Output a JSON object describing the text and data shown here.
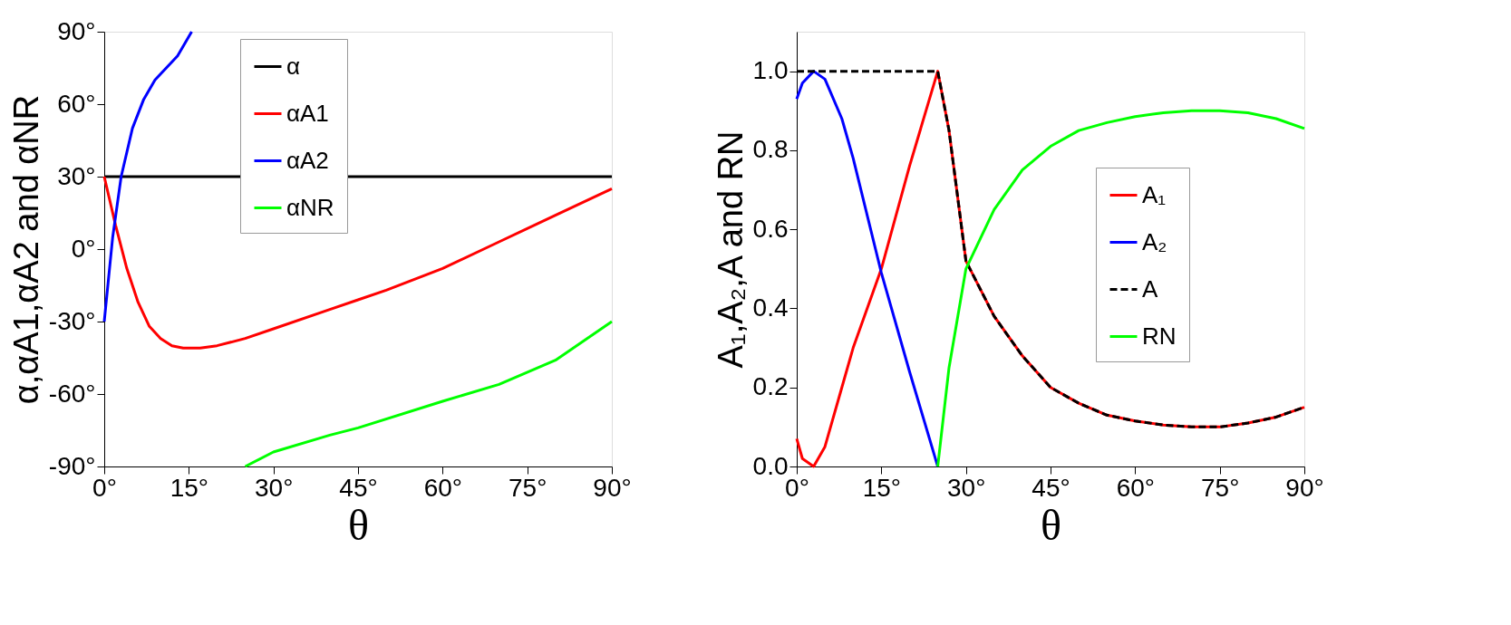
{
  "chart_data": [
    {
      "type": "line",
      "xlabel": "θ",
      "ylabel": "α,αA1,αA2 and αNR",
      "legend": "top",
      "grid": false,
      "line_style": "solid",
      "xlim": [
        0,
        90
      ],
      "ylim": [
        -90,
        90
      ],
      "xticks": [
        {
          "value": 0,
          "label": "0°"
        },
        {
          "value": 15,
          "label": "15°"
        },
        {
          "value": 30,
          "label": "30°"
        },
        {
          "value": 45,
          "label": "45°"
        },
        {
          "value": 60,
          "label": "60°"
        },
        {
          "value": 75,
          "label": "75°"
        },
        {
          "value": 90,
          "label": "90°"
        }
      ],
      "yticks": [
        {
          "value": -90,
          "label": "-90°"
        },
        {
          "value": -60,
          "label": "-60°"
        },
        {
          "value": -30,
          "label": "-30°"
        },
        {
          "value": 0,
          "label": "0°"
        },
        {
          "value": 30,
          "label": "30°"
        },
        {
          "value": 60,
          "label": "60°"
        },
        {
          "value": 90,
          "label": "90°"
        }
      ],
      "series": [
        {
          "name": "α",
          "color": "#000000",
          "x": [
            0,
            90
          ],
          "values": [
            30,
            30
          ]
        },
        {
          "name": "αA1",
          "color": "#ff0000",
          "x": [
            0,
            2,
            4,
            6,
            8,
            10,
            12,
            14,
            17,
            20,
            25,
            30,
            40,
            45,
            50,
            60,
            70,
            80,
            90
          ],
          "values": [
            30,
            10,
            -8,
            -22,
            -32,
            -37,
            -40,
            -41,
            -41,
            -40,
            -37,
            -33,
            -25,
            -21,
            -17,
            -8,
            3,
            14,
            25
          ]
        },
        {
          "name": "αA2",
          "color": "#0000ff",
          "x": [
            0,
            1.5,
            3,
            5,
            7,
            9,
            11,
            13,
            15.5
          ],
          "values": [
            -30,
            5,
            30,
            50,
            62,
            70,
            75,
            80,
            90
          ]
        },
        {
          "name": "αNR",
          "color": "#00ff00",
          "x": [
            25,
            30,
            40,
            45,
            60,
            70,
            80,
            90
          ],
          "values": [
            -90,
            -84,
            -77,
            -74,
            -63,
            -56,
            -46,
            -30
          ]
        }
      ]
    },
    {
      "type": "line",
      "xlabel": "θ",
      "ylabel": "A₁,A₂,A and RN",
      "legend": "right",
      "grid": false,
      "xlim": [
        0,
        90
      ],
      "ylim": [
        0,
        1.1
      ],
      "xticks": [
        {
          "value": 0,
          "label": "0°"
        },
        {
          "value": 15,
          "label": "15°"
        },
        {
          "value": 30,
          "label": "30°"
        },
        {
          "value": 45,
          "label": "45°"
        },
        {
          "value": 60,
          "label": "60°"
        },
        {
          "value": 75,
          "label": "75°"
        },
        {
          "value": 90,
          "label": "90°"
        }
      ],
      "yticks": [
        {
          "value": 0,
          "label": "0.0"
        },
        {
          "value": 0.2,
          "label": "0.2"
        },
        {
          "value": 0.4,
          "label": "0.4"
        },
        {
          "value": 0.6,
          "label": "0.6"
        },
        {
          "value": 0.8,
          "label": "0.8"
        },
        {
          "value": 1,
          "label": "1.0"
        }
      ],
      "series": [
        {
          "name": "A₁",
          "color": "#ff0000",
          "line_style": "solid",
          "x": [
            0,
            1,
            3,
            5,
            8,
            10,
            15,
            20,
            25,
            27,
            30,
            35,
            40,
            45,
            50,
            55,
            60,
            65,
            70,
            75,
            80,
            85,
            90
          ],
          "values": [
            0.07,
            0.02,
            0,
            0.05,
            0.2,
            0.3,
            0.5,
            0.76,
            1,
            0.85,
            0.52,
            0.38,
            0.28,
            0.2,
            0.16,
            0.13,
            0.115,
            0.105,
            0.1,
            0.1,
            0.11,
            0.125,
            0.15
          ]
        },
        {
          "name": "A₂",
          "color": "#0000ff",
          "line_style": "solid",
          "x": [
            0,
            1,
            3,
            5,
            8,
            10,
            15,
            20,
            25
          ],
          "values": [
            0.93,
            0.97,
            1,
            0.98,
            0.88,
            0.78,
            0.49,
            0.24,
            0
          ]
        },
        {
          "name": "A",
          "color": "#000000",
          "line_style": "dashed",
          "x": [
            0,
            25,
            27,
            30,
            35,
            40,
            45,
            50,
            55,
            60,
            65,
            70,
            75,
            80,
            85,
            90
          ],
          "values": [
            1,
            1,
            0.85,
            0.52,
            0.38,
            0.28,
            0.2,
            0.16,
            0.13,
            0.115,
            0.105,
            0.1,
            0.1,
            0.11,
            0.125,
            0.15
          ]
        },
        {
          "name": "RN",
          "color": "#00ff00",
          "line_style": "solid",
          "x": [
            25,
            27,
            30,
            35,
            40,
            45,
            50,
            55,
            60,
            65,
            70,
            75,
            80,
            85,
            90
          ],
          "values": [
            0,
            0.25,
            0.5,
            0.65,
            0.75,
            0.81,
            0.85,
            0.87,
            0.885,
            0.895,
            0.9,
            0.9,
            0.895,
            0.88,
            0.855
          ]
        }
      ]
    }
  ]
}
